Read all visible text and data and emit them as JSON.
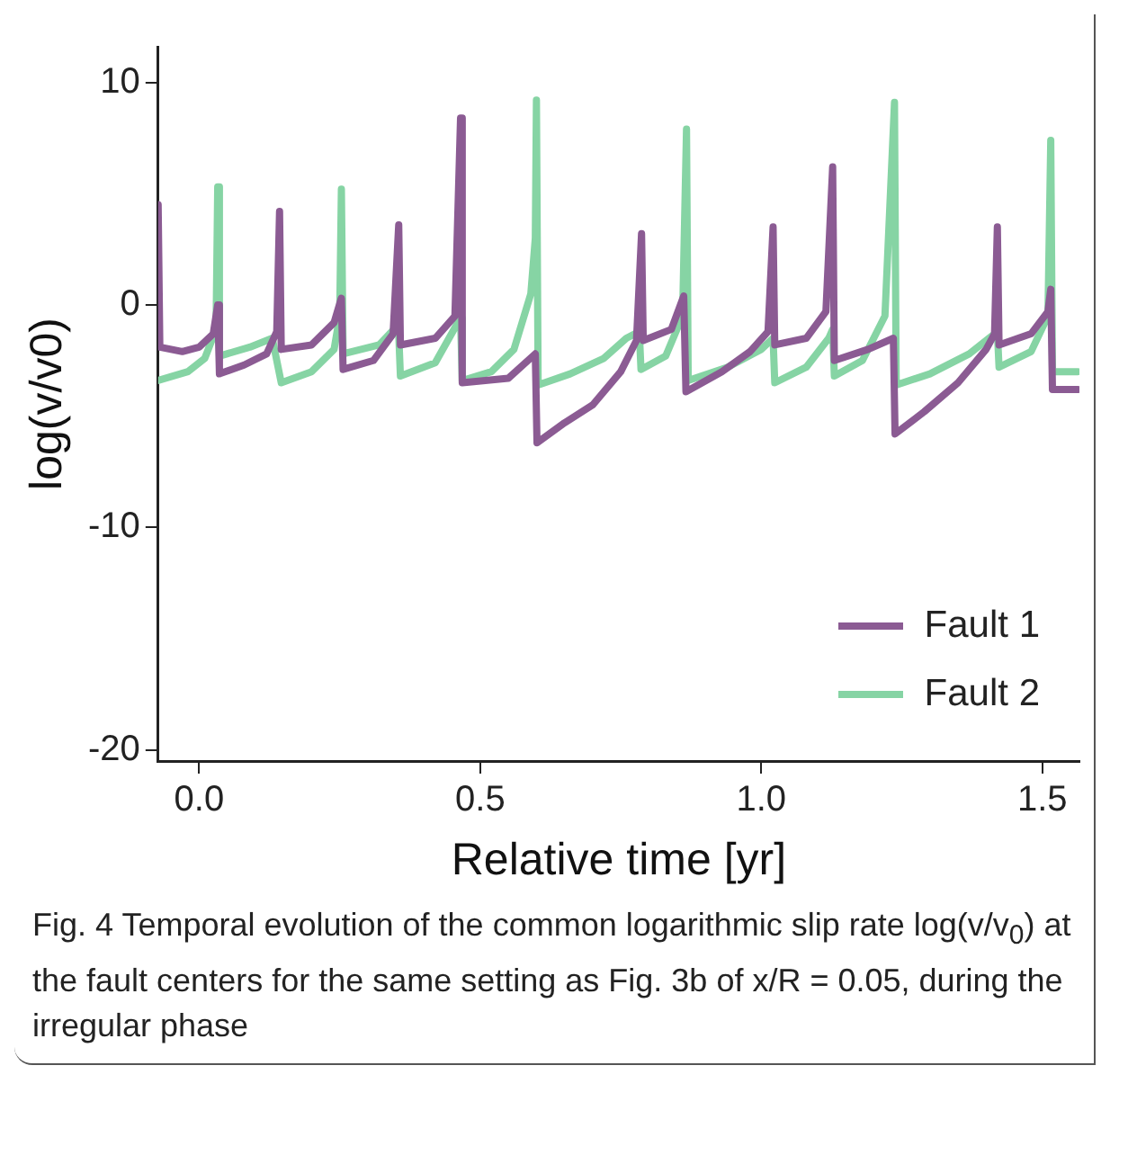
{
  "chart_data": {
    "type": "line",
    "xlabel": "Relative time [yr]",
    "ylabel": "log(v/v0)",
    "xlim": [
      -0.073,
      1.566
    ],
    "ylim": [
      -20.5,
      11.6
    ],
    "xticks": [
      {
        "value": 0,
        "label": "0.0"
      },
      {
        "value": 0.5,
        "label": "0.5"
      },
      {
        "value": 1,
        "label": "1.0"
      },
      {
        "value": 1.5,
        "label": "1.5"
      }
    ],
    "yticks": [
      -20,
      -10,
      0,
      10
    ],
    "grid": false,
    "legend": "bottom right",
    "marker": "none",
    "line_style": "solid",
    "series": [
      {
        "name": "Fault 1",
        "color": "#8b5b93",
        "x": [
          -0.073,
          -0.07,
          -0.03,
          0.0,
          0.025,
          0.033,
          0.036,
          0.08,
          0.12,
          0.138,
          0.143,
          0.146,
          0.2,
          0.24,
          0.253,
          0.256,
          0.31,
          0.345,
          0.355,
          0.358,
          0.42,
          0.455,
          0.465,
          0.468,
          0.55,
          0.598,
          0.601,
          0.65,
          0.7,
          0.75,
          0.778,
          0.787,
          0.79,
          0.84,
          0.862,
          0.866,
          0.93,
          0.98,
          1.012,
          1.021,
          1.024,
          1.08,
          1.115,
          1.127,
          1.13,
          1.19,
          1.235,
          1.238,
          1.29,
          1.35,
          1.4,
          1.415,
          1.42,
          1.423,
          1.48,
          1.51,
          1.515,
          1.518,
          1.563
        ],
        "values": [
          4.5,
          -1.9,
          -2.1,
          -1.9,
          -1.3,
          0.0,
          -3.1,
          -2.7,
          -2.2,
          -1.2,
          4.2,
          -2.0,
          -1.8,
          -0.8,
          0.3,
          -2.9,
          -2.5,
          -1.3,
          3.6,
          -1.8,
          -1.5,
          -0.5,
          8.4,
          -3.5,
          -3.3,
          -2.2,
          -6.2,
          -5.3,
          -4.5,
          -3.0,
          -1.6,
          3.2,
          -1.6,
          -1.1,
          0.4,
          -3.9,
          -3.0,
          -2.1,
          -1.2,
          3.5,
          -1.8,
          -1.5,
          -0.3,
          6.2,
          -2.5,
          -2.0,
          -1.5,
          -5.8,
          -4.8,
          -3.5,
          -2.0,
          -1.3,
          3.5,
          -1.8,
          -1.3,
          -0.3,
          0.7,
          -3.8,
          -3.8
        ]
      },
      {
        "name": "Fault 2",
        "color": "#86d4a4",
        "x": [
          -0.073,
          -0.02,
          0.01,
          0.03,
          0.033,
          0.036,
          0.09,
          0.13,
          0.146,
          0.2,
          0.24,
          0.25,
          0.253,
          0.256,
          0.32,
          0.35,
          0.355,
          0.358,
          0.42,
          0.46,
          0.465,
          0.468,
          0.52,
          0.56,
          0.59,
          0.598,
          0.6,
          0.603,
          0.66,
          0.72,
          0.76,
          0.783,
          0.786,
          0.83,
          0.86,
          0.867,
          0.87,
          0.94,
          1.0,
          1.021,
          1.024,
          1.08,
          1.12,
          1.127,
          1.13,
          1.18,
          1.22,
          1.237,
          1.24,
          1.3,
          1.37,
          1.415,
          1.42,
          1.423,
          1.48,
          1.51,
          1.515,
          1.518,
          1.563
        ],
        "values": [
          -3.4,
          -3.0,
          -2.4,
          -1.1,
          5.3,
          -2.3,
          -1.9,
          -1.5,
          -3.5,
          -3.0,
          -2.0,
          -0.5,
          5.2,
          -2.2,
          -1.8,
          -1.0,
          -1.3,
          -3.2,
          -2.6,
          -0.8,
          -0.6,
          -3.4,
          -3.0,
          -2.0,
          0.5,
          3.0,
          9.2,
          -3.6,
          -3.1,
          -2.4,
          -1.5,
          -1.2,
          -2.9,
          -2.3,
          -0.5,
          7.9,
          -3.4,
          -2.8,
          -2.0,
          -1.5,
          -3.5,
          -2.8,
          -1.5,
          -1.1,
          -3.2,
          -2.5,
          -0.5,
          9.1,
          -3.6,
          -3.1,
          -2.2,
          -1.3,
          -1.2,
          -2.8,
          -2.1,
          -0.5,
          7.4,
          -3.0,
          -3.0
        ]
      }
    ],
    "annotations": [
      "Fig. 4  Temporal evolution of the common logarithmic slip rate log(v/v$_{0}$) at the fault centers for the same setting as Fig. 3b of x/R = 0.05, during the irregular phase"
    ]
  }
}
